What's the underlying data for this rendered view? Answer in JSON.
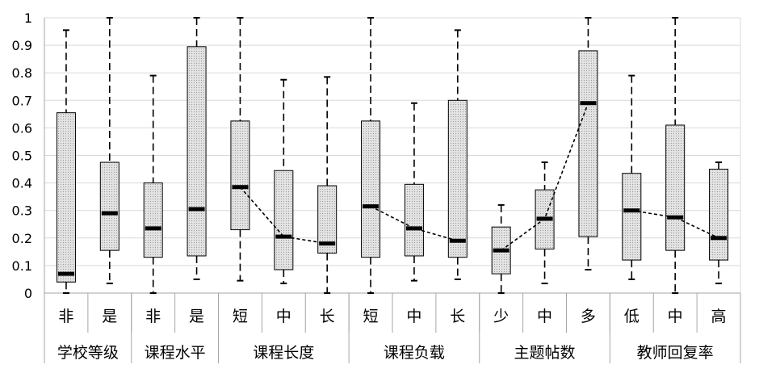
{
  "chart_data": {
    "type": "box",
    "ylim": [
      0,
      1
    ],
    "yticks": [
      "0",
      "0.1",
      "0.2",
      "0.3",
      "0.4",
      "0.5",
      "0.6",
      "0.7",
      "0.8",
      "0.9",
      "1"
    ],
    "grid": true,
    "categories": [
      "非",
      "是",
      "非",
      "是",
      "短",
      "中",
      "长",
      "短",
      "中",
      "长",
      "少",
      "中",
      "多",
      "低",
      "中",
      "高"
    ],
    "groups": [
      {
        "label": "学校等级",
        "count": 2
      },
      {
        "label": "课程水平",
        "count": 2
      },
      {
        "label": "课程长度",
        "count": 3
      },
      {
        "label": "课程负载",
        "count": 3
      },
      {
        "label": "主题帖数",
        "count": 3
      },
      {
        "label": "教师回复率",
        "count": 3
      }
    ],
    "boxes": [
      {
        "min": 0.0,
        "q1": 0.04,
        "median": 0.07,
        "q3": 0.655,
        "max": 0.955
      },
      {
        "min": 0.035,
        "q1": 0.155,
        "median": 0.29,
        "q3": 0.475,
        "max": 1.0
      },
      {
        "min": 0.0,
        "q1": 0.13,
        "median": 0.235,
        "q3": 0.4,
        "max": 0.79
      },
      {
        "min": 0.05,
        "q1": 0.135,
        "median": 0.305,
        "q3": 0.895,
        "max": 1.0
      },
      {
        "min": 0.045,
        "q1": 0.23,
        "median": 0.385,
        "q3": 0.625,
        "max": 1.0
      },
      {
        "min": 0.035,
        "q1": 0.085,
        "median": 0.205,
        "q3": 0.445,
        "max": 0.775
      },
      {
        "min": 0.0,
        "q1": 0.145,
        "median": 0.18,
        "q3": 0.39,
        "max": 0.785
      },
      {
        "min": 0.0,
        "q1": 0.13,
        "median": 0.315,
        "q3": 0.625,
        "max": 1.0
      },
      {
        "min": 0.045,
        "q1": 0.135,
        "median": 0.235,
        "q3": 0.395,
        "max": 0.69
      },
      {
        "min": 0.05,
        "q1": 0.13,
        "median": 0.19,
        "q3": 0.7,
        "max": 0.955
      },
      {
        "min": 0.0,
        "q1": 0.07,
        "median": 0.155,
        "q3": 0.24,
        "max": 0.32
      },
      {
        "min": 0.035,
        "q1": 0.16,
        "median": 0.27,
        "q3": 0.375,
        "max": 0.475
      },
      {
        "min": 0.085,
        "q1": 0.205,
        "median": 0.69,
        "q3": 0.88,
        "max": 1.0
      },
      {
        "min": 0.05,
        "q1": 0.12,
        "median": 0.3,
        "q3": 0.435,
        "max": 0.79
      },
      {
        "min": 0.0,
        "q1": 0.155,
        "median": 0.275,
        "q3": 0.61,
        "max": 1.0
      },
      {
        "min": 0.035,
        "q1": 0.12,
        "median": 0.2,
        "q3": 0.45,
        "max": 0.475
      }
    ],
    "median_trend_lines": [
      [
        4,
        5,
        6
      ],
      [
        7,
        8,
        9
      ],
      [
        10,
        11,
        12
      ],
      [
        13,
        14,
        15
      ]
    ]
  }
}
